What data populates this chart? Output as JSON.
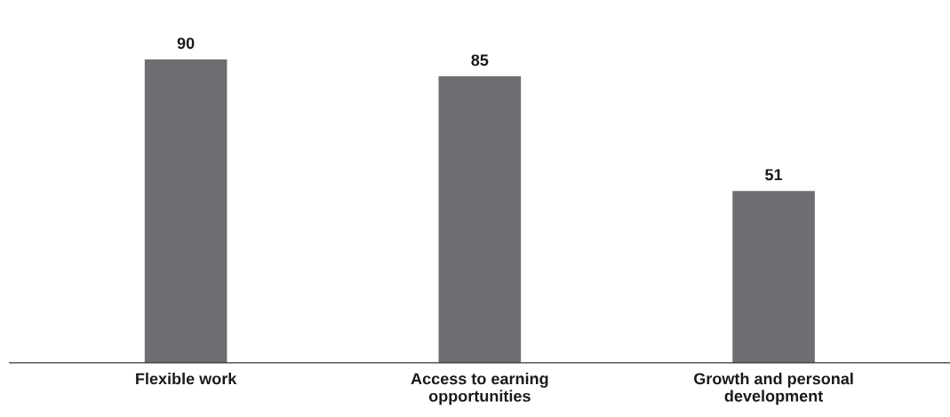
{
  "chart_data": {
    "type": "bar",
    "categories": [
      "Flexible work",
      "Access to earning\nopportunities",
      "Growth and personal\ndevelopment"
    ],
    "values": [
      90,
      85,
      51
    ],
    "color": "#6d6e71",
    "tick_labels": "x",
    "data_labels": true,
    "grid": false,
    "legend": false
  }
}
